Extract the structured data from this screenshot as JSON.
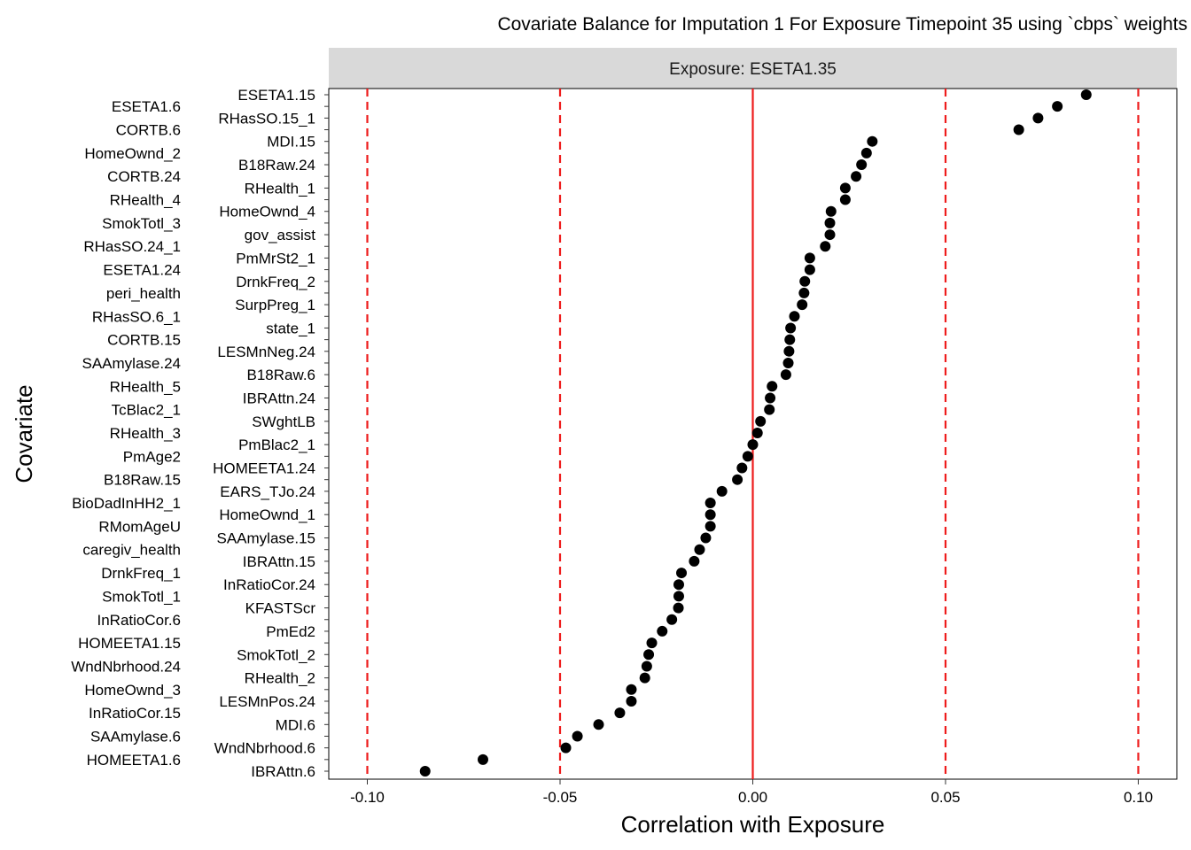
{
  "chart_data": {
    "type": "scatter",
    "title": "Covariate Balance for Imputation 1 For Exposure Timepoint 35 using `cbps` weights",
    "facet_label": "Exposure: ESETA1.35",
    "xlabel": "Correlation with Exposure",
    "ylabel": "Covariate",
    "xlim": [
      -0.11,
      0.11
    ],
    "x_ticks": [
      -0.1,
      -0.05,
      0.0,
      0.05,
      0.1
    ],
    "x_tick_labels": [
      "-0.10",
      "-0.05",
      "0.00",
      "0.05",
      "0.10"
    ],
    "reference_lines": {
      "solid": 0,
      "dashed": [
        -0.1,
        -0.05,
        0.05,
        0.1
      ],
      "color": "#ee1c1c"
    },
    "grid": false,
    "point_color": "#000000",
    "strip_color": "#d9d9d9",
    "covariates_top_to_bottom": [
      {
        "label": "ESETA1.15",
        "value": 0.0865
      },
      {
        "label": "ESETA1.6",
        "value": 0.079
      },
      {
        "label": "RHasSO.15_1",
        "value": 0.074
      },
      {
        "label": "CORTB.6",
        "value": 0.069
      },
      {
        "label": "MDI.15",
        "value": 0.031
      },
      {
        "label": "HomeOwnd_2",
        "value": 0.0295
      },
      {
        "label": "B18Raw.24",
        "value": 0.0282
      },
      {
        "label": "CORTB.24",
        "value": 0.0268
      },
      {
        "label": "RHealth_1",
        "value": 0.024
      },
      {
        "label": "RHealth_4",
        "value": 0.024
      },
      {
        "label": "HomeOwnd_4",
        "value": 0.0203
      },
      {
        "label": "SmokTotl_3",
        "value": 0.02
      },
      {
        "label": "gov_assist",
        "value": 0.02
      },
      {
        "label": "RHasSO.24_1",
        "value": 0.0188
      },
      {
        "label": "PmMrSt2_1",
        "value": 0.0148
      },
      {
        "label": "ESETA1.24",
        "value": 0.0148
      },
      {
        "label": "DrnkFreq_2",
        "value": 0.0135
      },
      {
        "label": "peri_health",
        "value": 0.0133
      },
      {
        "label": "SurpPreg_1",
        "value": 0.0128
      },
      {
        "label": "RHasSO.6_1",
        "value": 0.0108
      },
      {
        "label": "state_1",
        "value": 0.0098
      },
      {
        "label": "CORTB.15",
        "value": 0.0096
      },
      {
        "label": "LESMnNeg.24",
        "value": 0.0094
      },
      {
        "label": "SAAmylase.24",
        "value": 0.0092
      },
      {
        "label": "B18Raw.6",
        "value": 0.0086
      },
      {
        "label": "RHealth_5",
        "value": 0.005
      },
      {
        "label": "IBRAttn.24",
        "value": 0.0045
      },
      {
        "label": "TcBlac2_1",
        "value": 0.0043
      },
      {
        "label": "SWghtLB",
        "value": 0.002
      },
      {
        "label": "RHealth_3",
        "value": 0.0012
      },
      {
        "label": "PmBlac2_1",
        "value": 0.0
      },
      {
        "label": "PmAge2",
        "value": -0.0013
      },
      {
        "label": "HOMEETA1.24",
        "value": -0.0028
      },
      {
        "label": "B18Raw.15",
        "value": -0.004
      },
      {
        "label": "EARS_TJo.24",
        "value": -0.008
      },
      {
        "label": "BioDadInHH2_1",
        "value": -0.011
      },
      {
        "label": "HomeOwnd_1",
        "value": -0.011
      },
      {
        "label": "RMomAgeU",
        "value": -0.011
      },
      {
        "label": "SAAmylase.15",
        "value": -0.0122
      },
      {
        "label": "caregiv_health",
        "value": -0.0138
      },
      {
        "label": "IBRAttn.15",
        "value": -0.0152
      },
      {
        "label": "DrnkFreq_1",
        "value": -0.0185
      },
      {
        "label": "InRatioCor.24",
        "value": -0.0192
      },
      {
        "label": "SmokTotl_1",
        "value": -0.0192
      },
      {
        "label": "KFASTScr",
        "value": -0.0193
      },
      {
        "label": "InRatioCor.6",
        "value": -0.021
      },
      {
        "label": "PmEd2",
        "value": -0.0235
      },
      {
        "label": "HOMEETA1.15",
        "value": -0.0262
      },
      {
        "label": "SmokTotl_2",
        "value": -0.027
      },
      {
        "label": "WndNbrhood.24",
        "value": -0.0275
      },
      {
        "label": "RHealth_2",
        "value": -0.028
      },
      {
        "label": "HomeOwnd_3",
        "value": -0.0315
      },
      {
        "label": "LESMnPos.24",
        "value": -0.0315
      },
      {
        "label": "InRatioCor.15",
        "value": -0.0345
      },
      {
        "label": "MDI.6",
        "value": -0.04
      },
      {
        "label": "SAAmylase.6",
        "value": -0.0455
      },
      {
        "label": "WndNbrhood.6",
        "value": -0.0485
      },
      {
        "label": "HOMEETA1.6",
        "value": -0.07
      },
      {
        "label": "IBRAttn.6",
        "value": -0.085
      }
    ]
  }
}
